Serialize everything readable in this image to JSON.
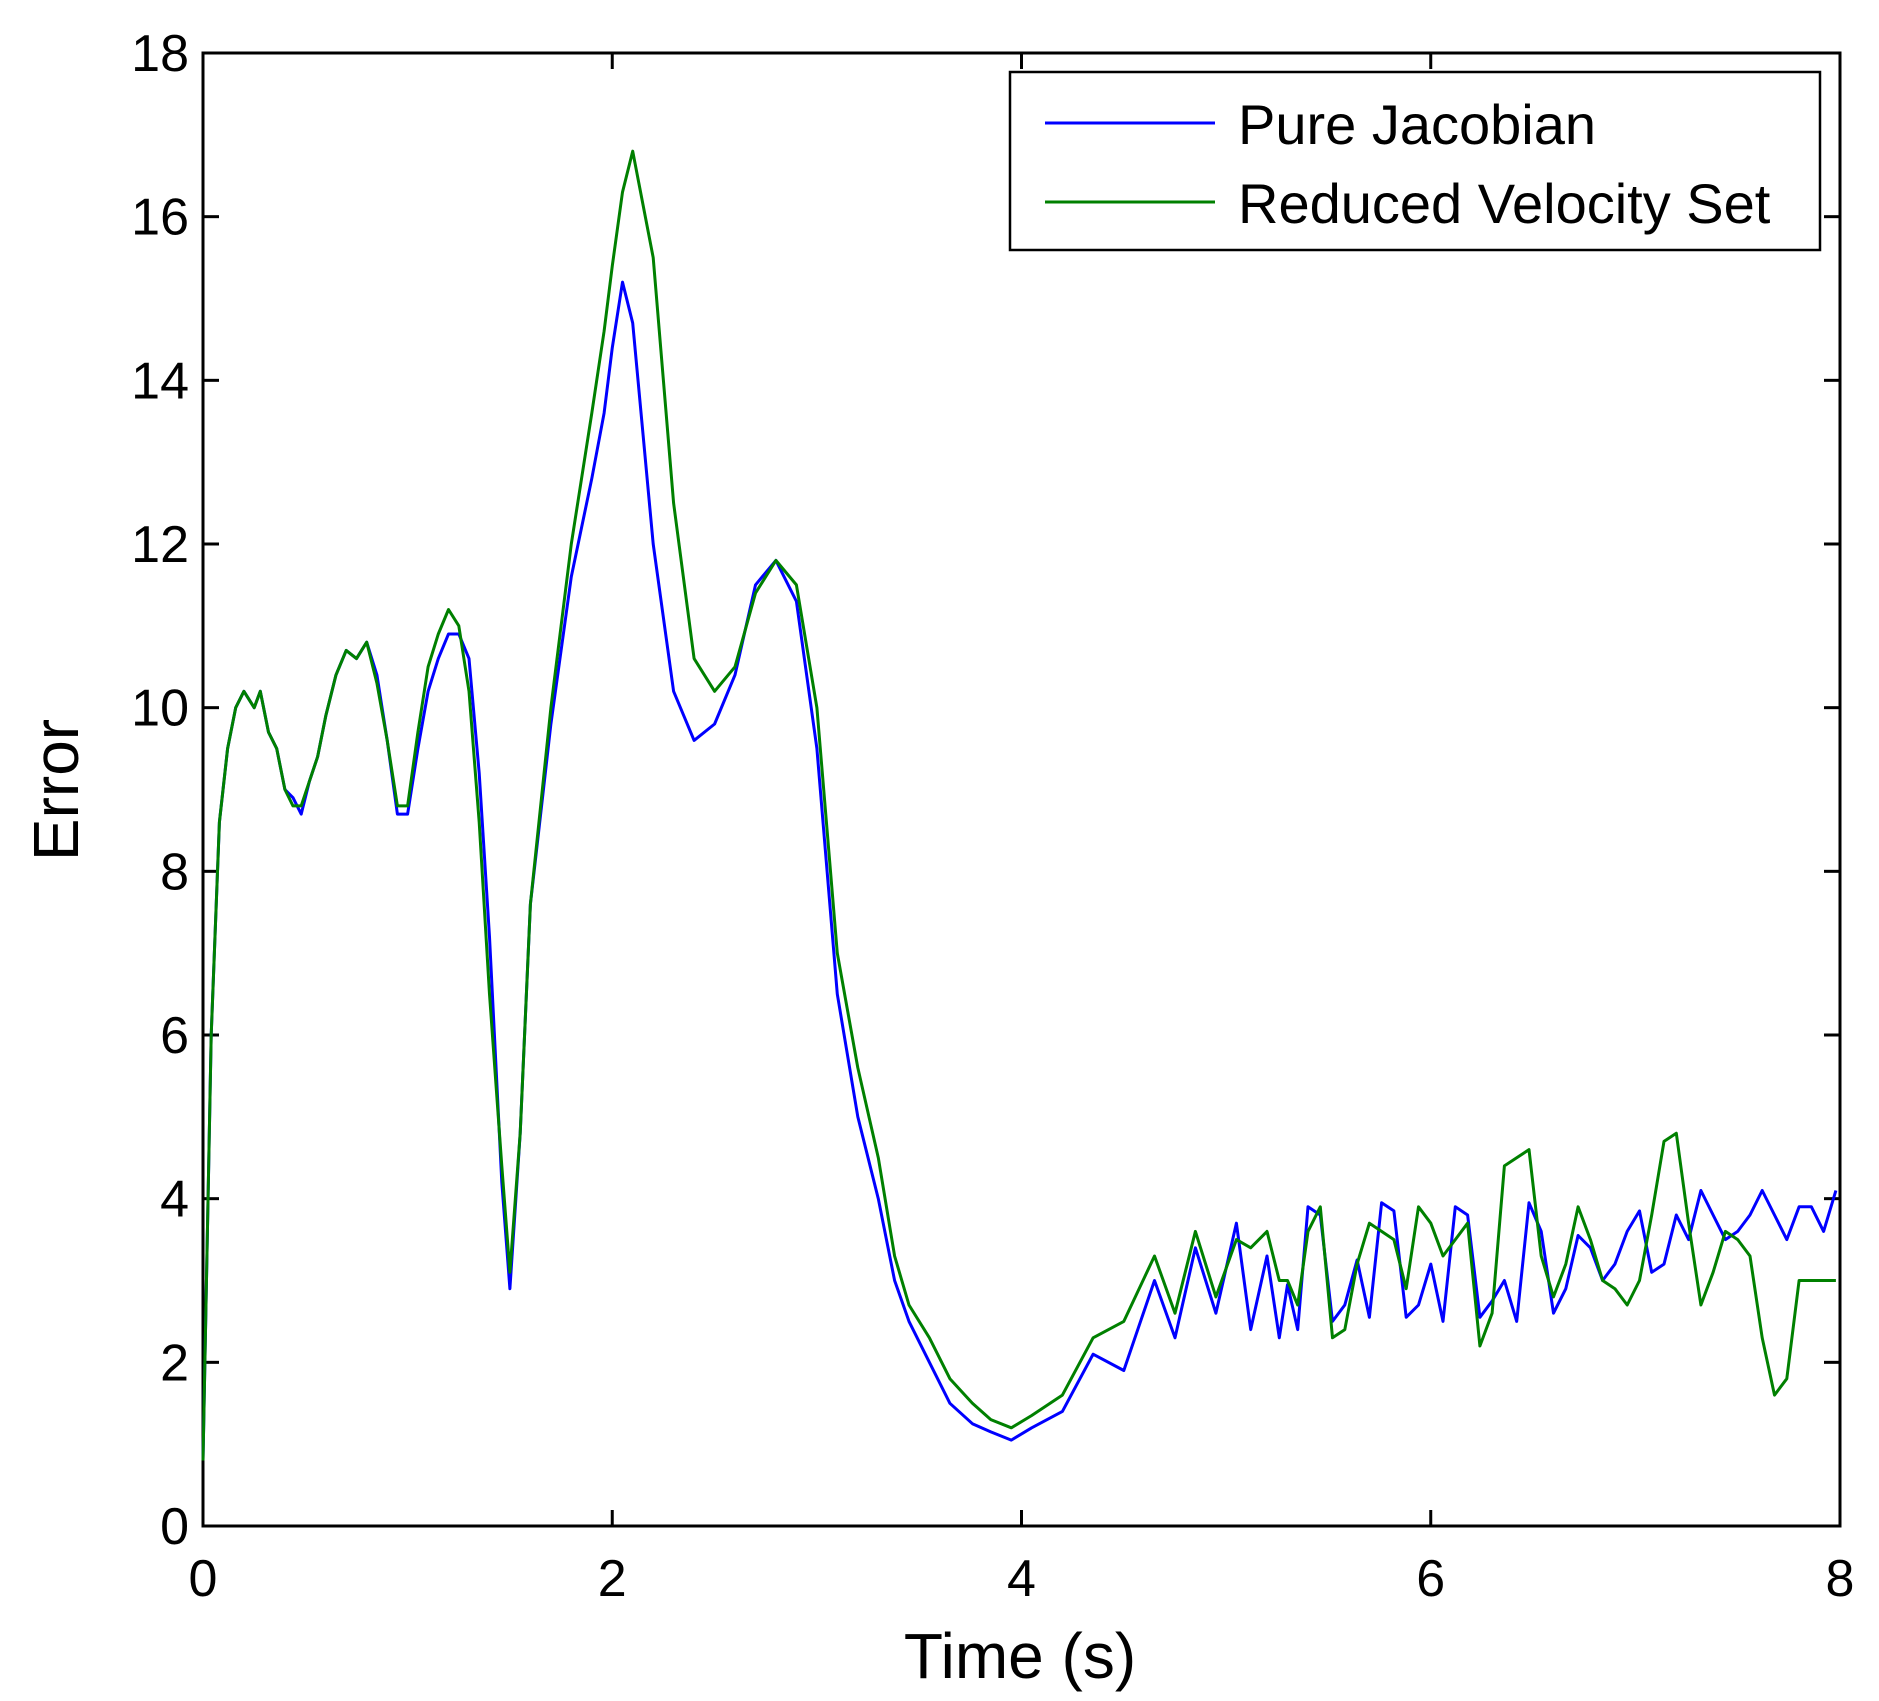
{
  "chart_data": {
    "type": "line",
    "xlabel": "Time (s)",
    "ylabel": "Error",
    "xlim": [
      0,
      8
    ],
    "ylim": [
      0,
      18
    ],
    "x_ticks": [
      0,
      2,
      4,
      6,
      8
    ],
    "y_ticks": [
      0,
      2,
      4,
      6,
      8,
      10,
      12,
      14,
      16,
      18
    ],
    "x_tick_labels": [
      "0",
      "2",
      "4",
      "6",
      "8"
    ],
    "y_tick_labels": [
      "0",
      "2",
      "4",
      "6",
      "8",
      "10",
      "12",
      "14",
      "16",
      "18"
    ],
    "grid": false,
    "legend_position": "top-right",
    "series": [
      {
        "name": "Pure Jacobian",
        "color": "#0000ff",
        "x": [
          0,
          0.04,
          0.08,
          0.12,
          0.16,
          0.2,
          0.25,
          0.28,
          0.32,
          0.36,
          0.4,
          0.44,
          0.48,
          0.52,
          0.56,
          0.6,
          0.65,
          0.7,
          0.75,
          0.8,
          0.85,
          0.9,
          0.95,
          1.0,
          1.05,
          1.1,
          1.15,
          1.2,
          1.25,
          1.3,
          1.35,
          1.4,
          1.46,
          1.5,
          1.55,
          1.6,
          1.7,
          1.8,
          1.9,
          1.96,
          2.0,
          2.05,
          2.1,
          2.2,
          2.3,
          2.4,
          2.5,
          2.6,
          2.7,
          2.8,
          2.9,
          3.0,
          3.05,
          3.1,
          3.2,
          3.3,
          3.38,
          3.45,
          3.55,
          3.65,
          3.76,
          3.85,
          3.95,
          4.05,
          4.2,
          4.35,
          4.5,
          4.65,
          4.75,
          4.85,
          4.95,
          5.05,
          5.12,
          5.2,
          5.26,
          5.3,
          5.35,
          5.4,
          5.46,
          5.52,
          5.58,
          5.64,
          5.7,
          5.76,
          5.82,
          5.88,
          5.94,
          6.0,
          6.06,
          6.12,
          6.18,
          6.24,
          6.3,
          6.36,
          6.42,
          6.48,
          6.54,
          6.6,
          6.66,
          6.72,
          6.78,
          6.84,
          6.9,
          6.96,
          7.02,
          7.08,
          7.14,
          7.2,
          7.26,
          7.32,
          7.38,
          7.44,
          7.5,
          7.56,
          7.62,
          7.68,
          7.74,
          7.8,
          7.86,
          7.92,
          7.98
        ],
        "y": [
          0.8,
          6.0,
          8.6,
          9.5,
          10.0,
          10.2,
          10.0,
          10.2,
          9.7,
          9.5,
          9.0,
          8.9,
          8.7,
          9.1,
          9.4,
          9.9,
          10.4,
          10.7,
          10.6,
          10.8,
          10.4,
          9.6,
          8.7,
          8.7,
          9.5,
          10.2,
          10.6,
          10.9,
          10.9,
          10.6,
          9.2,
          7.2,
          4.2,
          2.9,
          4.8,
          7.6,
          9.8,
          11.6,
          12.8,
          13.6,
          14.4,
          15.2,
          14.7,
          12.0,
          10.2,
          9.6,
          9.8,
          10.4,
          11.5,
          11.8,
          11.3,
          9.5,
          8.0,
          6.5,
          5.0,
          4.0,
          3.0,
          2.5,
          2.0,
          1.5,
          1.25,
          1.15,
          1.05,
          1.2,
          1.4,
          2.1,
          1.9,
          3.0,
          2.3,
          3.4,
          2.6,
          3.7,
          2.4,
          3.3,
          2.3,
          2.95,
          2.4,
          3.9,
          3.8,
          2.5,
          2.7,
          3.25,
          2.55,
          3.95,
          3.85,
          2.55,
          2.7,
          3.2,
          2.5,
          3.9,
          3.8,
          2.55,
          2.75,
          3.0,
          2.5,
          3.95,
          3.6,
          2.6,
          2.9,
          3.55,
          3.4,
          3.0,
          3.2,
          3.6,
          3.85,
          3.1,
          3.2,
          3.8,
          3.5,
          4.1,
          3.8,
          3.5,
          3.6,
          3.8,
          4.1,
          3.8,
          3.5,
          3.9,
          3.9,
          3.6,
          4.1
        ]
      },
      {
        "name": "Reduced Velocity Set",
        "color": "#008000",
        "x": [
          0,
          0.04,
          0.08,
          0.12,
          0.16,
          0.2,
          0.25,
          0.28,
          0.32,
          0.36,
          0.4,
          0.44,
          0.48,
          0.52,
          0.56,
          0.6,
          0.65,
          0.7,
          0.75,
          0.8,
          0.85,
          0.9,
          0.95,
          1.0,
          1.05,
          1.1,
          1.15,
          1.2,
          1.25,
          1.3,
          1.35,
          1.4,
          1.46,
          1.5,
          1.55,
          1.6,
          1.7,
          1.8,
          1.9,
          1.96,
          2.0,
          2.05,
          2.1,
          2.2,
          2.3,
          2.4,
          2.5,
          2.6,
          2.7,
          2.8,
          2.9,
          3.0,
          3.05,
          3.1,
          3.2,
          3.3,
          3.38,
          3.45,
          3.55,
          3.65,
          3.76,
          3.85,
          3.95,
          4.05,
          4.2,
          4.35,
          4.5,
          4.65,
          4.75,
          4.85,
          4.95,
          5.05,
          5.12,
          5.2,
          5.26,
          5.3,
          5.35,
          5.4,
          5.46,
          5.52,
          5.58,
          5.64,
          5.7,
          5.76,
          5.82,
          5.88,
          5.94,
          6.0,
          6.06,
          6.12,
          6.18,
          6.24,
          6.3,
          6.36,
          6.42,
          6.48,
          6.54,
          6.6,
          6.66,
          6.72,
          6.78,
          6.84,
          6.9,
          6.96,
          7.02,
          7.08,
          7.14,
          7.2,
          7.26,
          7.32,
          7.38,
          7.44,
          7.5,
          7.56,
          7.62,
          7.68,
          7.74,
          7.8,
          7.86,
          7.92,
          7.98
        ],
        "y": [
          0.8,
          6.0,
          8.6,
          9.5,
          10.0,
          10.2,
          10.0,
          10.2,
          9.7,
          9.5,
          9.0,
          8.8,
          8.8,
          9.1,
          9.4,
          9.9,
          10.4,
          10.7,
          10.6,
          10.8,
          10.3,
          9.6,
          8.8,
          8.8,
          9.7,
          10.5,
          10.9,
          11.2,
          11.0,
          10.2,
          8.6,
          6.5,
          4.4,
          3.1,
          4.8,
          7.6,
          10.0,
          12.0,
          13.6,
          14.6,
          15.4,
          16.3,
          16.8,
          15.5,
          12.5,
          10.6,
          10.2,
          10.5,
          11.4,
          11.8,
          11.5,
          10.0,
          8.5,
          7.0,
          5.6,
          4.5,
          3.3,
          2.7,
          2.3,
          1.8,
          1.5,
          1.3,
          1.2,
          1.35,
          1.6,
          2.3,
          2.5,
          3.3,
          2.6,
          3.6,
          2.8,
          3.5,
          3.4,
          3.6,
          3.0,
          3.0,
          2.7,
          3.6,
          3.9,
          2.3,
          2.4,
          3.2,
          3.7,
          3.6,
          3.5,
          2.9,
          3.9,
          3.7,
          3.3,
          3.5,
          3.7,
          2.2,
          2.6,
          4.4,
          4.5,
          4.6,
          3.3,
          2.8,
          3.2,
          3.9,
          3.5,
          3.0,
          2.9,
          2.7,
          3.0,
          3.8,
          4.7,
          4.8,
          3.7,
          2.7,
          3.1,
          3.6,
          3.5,
          3.3,
          2.3,
          1.6,
          1.8,
          3.0,
          3.0,
          3.0,
          3.0
        ]
      }
    ]
  }
}
